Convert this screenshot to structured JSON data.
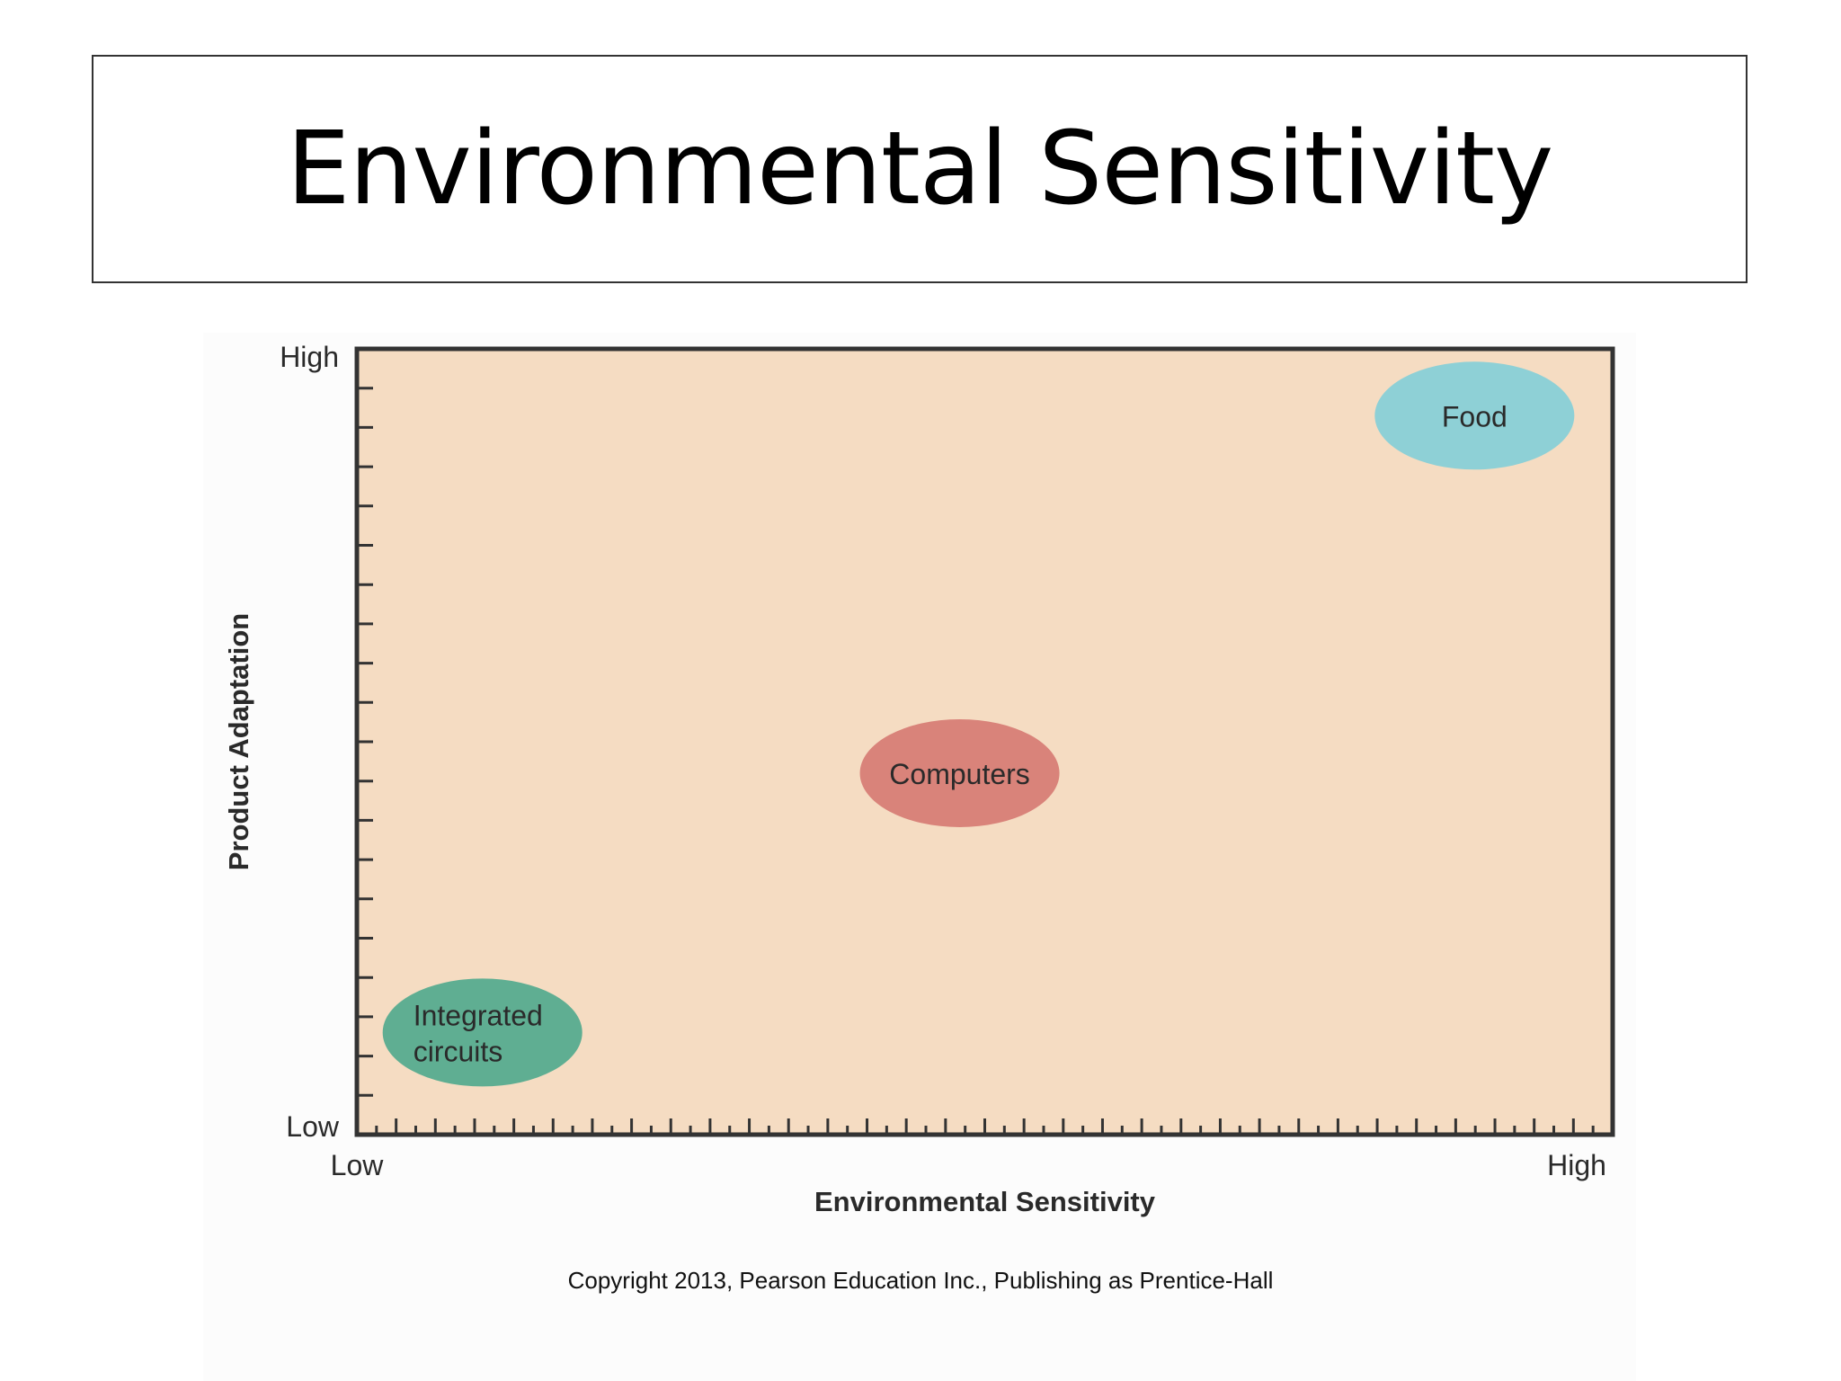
{
  "slide": {
    "title": "Environmental Sensitivity",
    "copyright": "Copyright 2013, Pearson Education Inc., Publishing as Prentice-Hall"
  },
  "chart_data": {
    "type": "scatter",
    "title": "",
    "xlabel": "Environmental Sensitivity",
    "ylabel": "Product Adaptation",
    "x_tick_labels": {
      "min": "Low",
      "max": "High"
    },
    "y_tick_labels": {
      "min": "Low",
      "max": "High"
    },
    "xlim": [
      0,
      1
    ],
    "ylim": [
      0,
      1
    ],
    "grid": false,
    "plot_background": "#f5dcc2",
    "points": [
      {
        "label": [
          "Integrated",
          "circuits"
        ],
        "x": 0.1,
        "y": 0.13,
        "color": "#5fae92"
      },
      {
        "label": [
          "Computers"
        ],
        "x": 0.48,
        "y": 0.46,
        "color": "#d9837a"
      },
      {
        "label": [
          "Food"
        ],
        "x": 0.89,
        "y": 0.915,
        "color": "#8ed0d6"
      }
    ]
  }
}
